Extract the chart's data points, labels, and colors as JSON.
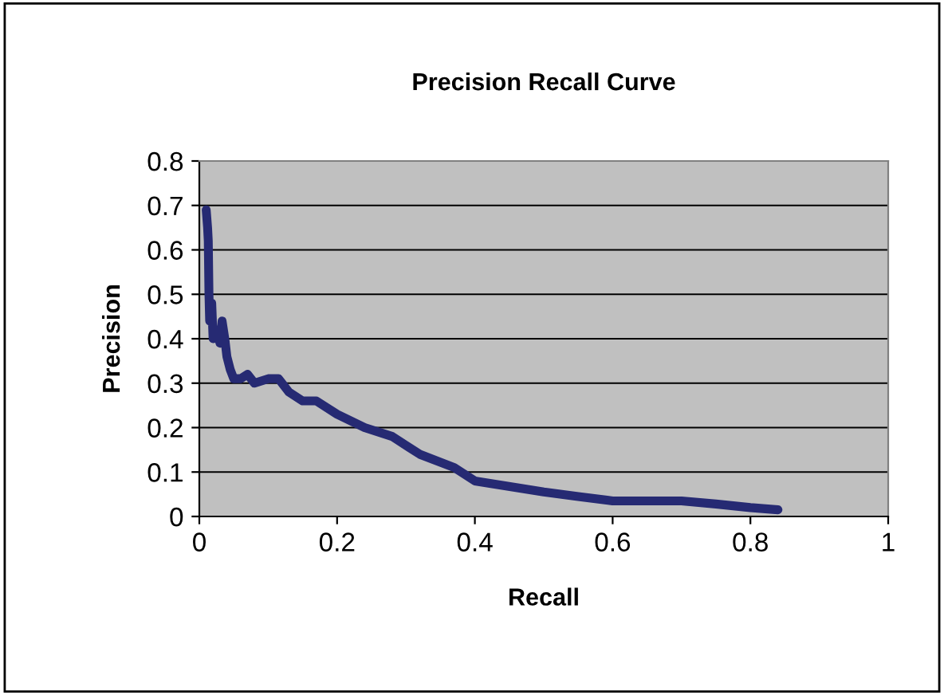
{
  "chart_data": {
    "type": "line",
    "title": "Precision Recall Curve",
    "xlabel": "Recall",
    "ylabel": "Precision",
    "series": [
      {
        "color": "#262a73",
        "x": [
          0.01,
          0.012,
          0.013,
          0.014,
          0.015,
          0.018,
          0.02,
          0.025,
          0.03,
          0.033,
          0.037,
          0.04,
          0.045,
          0.05,
          0.06,
          0.07,
          0.08,
          0.1,
          0.115,
          0.13,
          0.15,
          0.17,
          0.2,
          0.24,
          0.28,
          0.32,
          0.37,
          0.4,
          0.44,
          0.5,
          0.55,
          0.6,
          0.7,
          0.75,
          0.8,
          0.84
        ],
        "values": [
          0.69,
          0.65,
          0.62,
          0.5,
          0.44,
          0.48,
          0.4,
          0.42,
          0.39,
          0.44,
          0.4,
          0.36,
          0.33,
          0.31,
          0.31,
          0.32,
          0.3,
          0.31,
          0.31,
          0.28,
          0.26,
          0.26,
          0.23,
          0.2,
          0.18,
          0.14,
          0.11,
          0.08,
          0.07,
          0.055,
          0.045,
          0.035,
          0.035,
          0.028,
          0.02,
          0.015
        ]
      }
    ],
    "xlim": [
      0,
      1
    ],
    "xticks": [
      0,
      0.2,
      0.4,
      0.6,
      0.8,
      1
    ],
    "ylim": [
      0,
      0.8
    ],
    "yticks": [
      0,
      0.1,
      0.2,
      0.3,
      0.4,
      0.5,
      0.6,
      0.7,
      0.8
    ],
    "grid": "y",
    "legend": false,
    "marker": "none",
    "line_style": "solid"
  }
}
